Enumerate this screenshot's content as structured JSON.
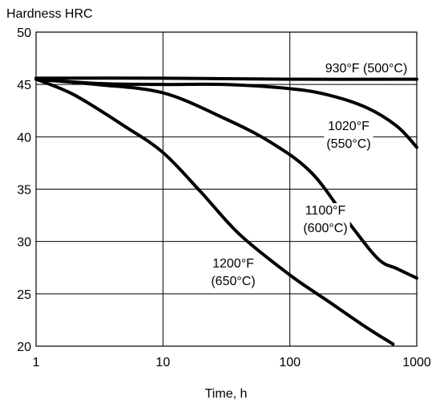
{
  "chart_data": {
    "type": "line",
    "title": "",
    "xlabel": "Time, h",
    "ylabel": "Hardness HRC",
    "xscale": "log",
    "xlim": [
      1,
      1000
    ],
    "ylim": [
      20,
      50
    ],
    "x_ticks": [
      "1",
      "10",
      "100",
      "1000"
    ],
    "y_ticks": [
      "20",
      "25",
      "30",
      "35",
      "40",
      "45",
      "50"
    ],
    "grid": true,
    "series": [
      {
        "name": "930°F (500°C)",
        "label_lines": [
          "930°F (500°C)"
        ],
        "x": [
          1,
          10,
          100,
          1000
        ],
        "y": [
          45.6,
          45.6,
          45.5,
          45.5
        ]
      },
      {
        "name": "1020°F (550°C)",
        "label_lines": [
          "1020°F",
          "(550°C)"
        ],
        "x": [
          1,
          3,
          10,
          30,
          100,
          200,
          400,
          700,
          1000
        ],
        "y": [
          45.5,
          45.1,
          45.0,
          45.0,
          44.6,
          44.0,
          42.8,
          41.0,
          39.0
        ]
      },
      {
        "name": "1100°F (600°C)",
        "label_lines": [
          "1100°F",
          "(600°C)"
        ],
        "x": [
          1,
          3,
          10,
          30,
          70,
          150,
          300,
          500,
          700,
          1000
        ],
        "y": [
          45.5,
          45.0,
          44.2,
          41.8,
          39.5,
          36.5,
          31.6,
          28.3,
          27.4,
          26.5
        ]
      },
      {
        "name": "1200°F (650°C)",
        "label_lines": [
          "1200°F",
          "(650°C)"
        ],
        "x": [
          1,
          2,
          5,
          10,
          20,
          40,
          100,
          200,
          400,
          650
        ],
        "y": [
          45.5,
          44.0,
          41.0,
          38.5,
          34.7,
          30.7,
          26.8,
          24.3,
          21.8,
          20.2
        ]
      }
    ]
  }
}
